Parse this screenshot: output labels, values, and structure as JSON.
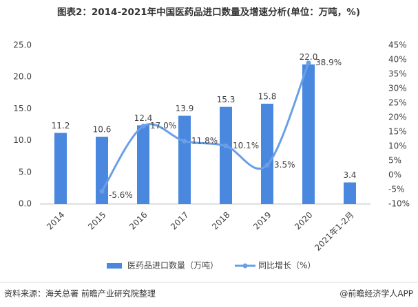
{
  "chart_data": {
    "type": "bar_line",
    "title": "图表2：2014-2021年中国医药品进口数量及增速分析(单位：万吨，%)",
    "categories": [
      "2014",
      "2015",
      "2016",
      "2017",
      "2018",
      "2019",
      "2020",
      "2021年1-2月"
    ],
    "series": [
      {
        "name": "医药品进口数量（万吨）",
        "type": "bar",
        "color": "#4a88df",
        "values": [
          11.2,
          10.6,
          12.4,
          13.9,
          15.3,
          15.8,
          22.0,
          3.4
        ],
        "value_labels": [
          "11.2",
          "10.6",
          "12.4",
          "13.9",
          "15.3",
          "15.8",
          "22.0",
          "3.4"
        ]
      },
      {
        "name": "同比增长（%）",
        "type": "line",
        "axis": "y2",
        "color": "#6a9fe6",
        "values": [
          null,
          -5.6,
          17.0,
          11.8,
          10.1,
          3.5,
          38.9,
          null
        ],
        "value_labels": [
          null,
          "-5.6%",
          "17.0%",
          "11.8%",
          "10.1%",
          "3.5%",
          "38.9%",
          null
        ]
      }
    ],
    "ylim": [
      0,
      25
    ],
    "yticks": [
      {
        "value": 0,
        "label": "0.0"
      },
      {
        "value": 5,
        "label": "5.0"
      },
      {
        "value": 10,
        "label": "10.0"
      },
      {
        "value": 15,
        "label": "15.0"
      },
      {
        "value": 20,
        "label": "20.0"
      },
      {
        "value": 25,
        "label": "25.0"
      }
    ],
    "y2lim": [
      -10,
      45
    ],
    "y2ticks": [
      {
        "value": -10,
        "label": "-10%"
      },
      {
        "value": -5,
        "label": "-5%"
      },
      {
        "value": 0,
        "label": "0%"
      },
      {
        "value": 5,
        "label": "5%"
      },
      {
        "value": 10,
        "label": "10%"
      },
      {
        "value": 15,
        "label": "15%"
      },
      {
        "value": 20,
        "label": "20%"
      },
      {
        "value": 25,
        "label": "25%"
      },
      {
        "value": 30,
        "label": "30%"
      },
      {
        "value": 35,
        "label": "35%"
      },
      {
        "value": 40,
        "label": "40%"
      },
      {
        "value": 45,
        "label": "45%"
      }
    ],
    "source": "资料来源：海关总署 前瞻产业研究院整理",
    "credit": "@前瞻经济学人APP"
  }
}
